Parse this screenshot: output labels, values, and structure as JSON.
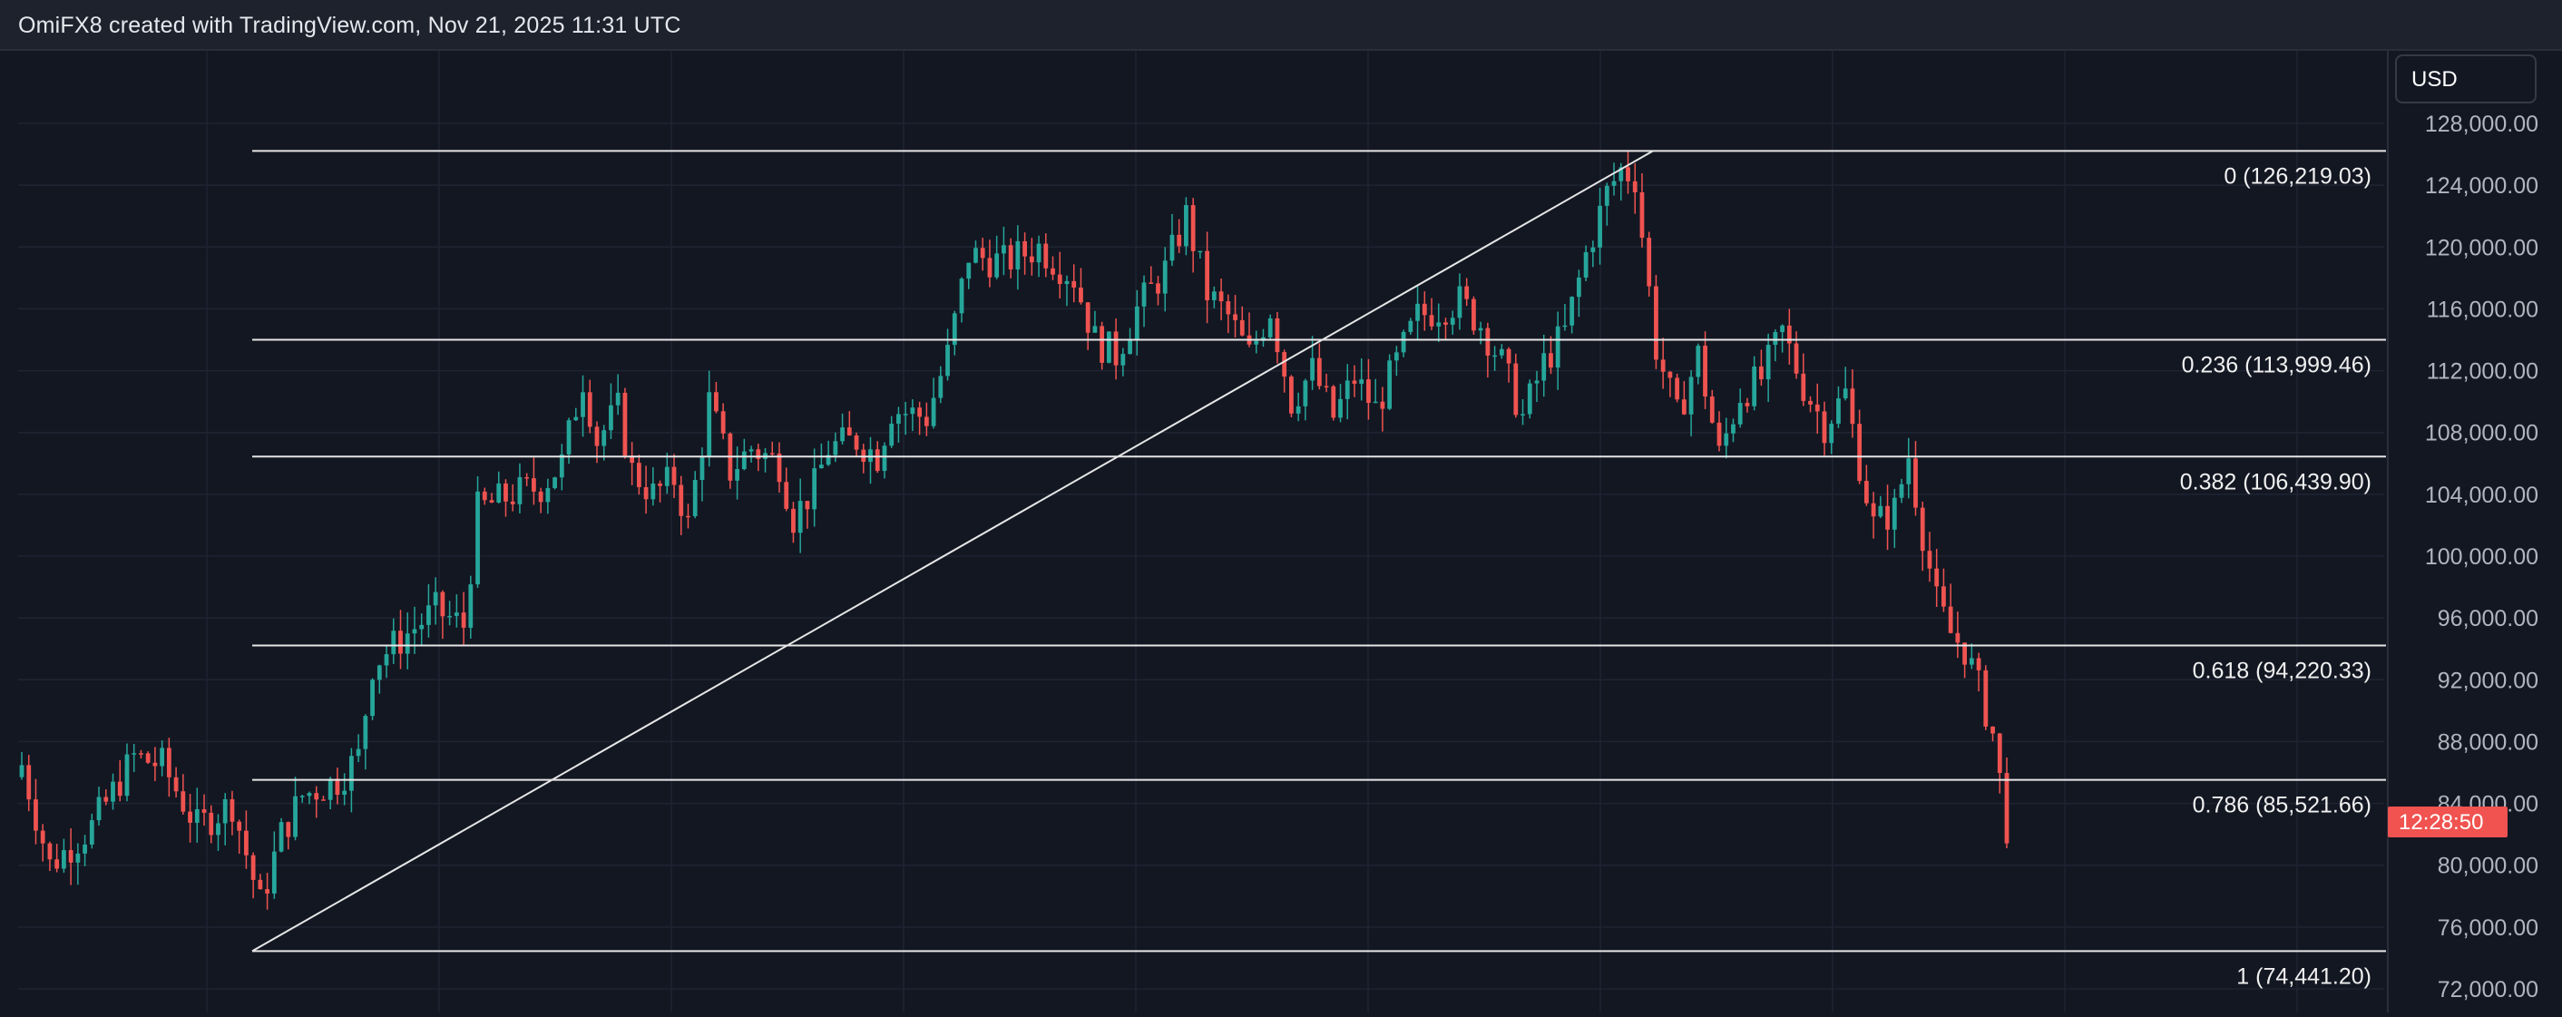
{
  "header": {
    "title": "OmiFX8 created with TradingView.com, Nov 21, 2025 11:31 UTC"
  },
  "price_axis": {
    "currency_label": "USD"
  },
  "countdown": "12:28:50",
  "colors": {
    "up": "#26a69a",
    "down": "#ef5350",
    "background": "#131722",
    "grid": "#1f2433",
    "fib_line": "#e6e6e6"
  },
  "chart_data": {
    "type": "candlestick",
    "title": "",
    "xlabel": "",
    "ylabel": "",
    "ylim": [
      70000,
      130000
    ],
    "yticks": [
      {
        "value": 72000,
        "label": "72,000.00"
      },
      {
        "value": 76000,
        "label": "76,000.00"
      },
      {
        "value": 80000,
        "label": "80,000.00"
      },
      {
        "value": 84000,
        "label": "84,000.00"
      },
      {
        "value": 88000,
        "label": "88,000.00"
      },
      {
        "value": 92000,
        "label": "92,000.00"
      },
      {
        "value": 96000,
        "label": "96,000.00"
      },
      {
        "value": 100000,
        "label": "100,000.00"
      },
      {
        "value": 104000,
        "label": "104,000.00"
      },
      {
        "value": 108000,
        "label": "108,000.00"
      },
      {
        "value": 112000,
        "label": "112,000.00"
      },
      {
        "value": 116000,
        "label": "116,000.00"
      },
      {
        "value": 120000,
        "label": "120,000.00"
      },
      {
        "value": 124000,
        "label": "124,000.00"
      },
      {
        "value": 128000,
        "label": "128,000.00"
      }
    ],
    "grid": true,
    "fib_levels": [
      {
        "ratio": "0",
        "price": 126219.03,
        "label": "0 (126,219.03)"
      },
      {
        "ratio": "0.236",
        "price": 113999.46,
        "label": "0.236 (113,999.46)"
      },
      {
        "ratio": "0.382",
        "price": 106439.9,
        "label": "0.382 (106,439.90)"
      },
      {
        "ratio": "0.618",
        "price": 94220.33,
        "label": "0.618 (94,220.33)"
      },
      {
        "ratio": "0.786",
        "price": 85521.66,
        "label": "0.786 (85,521.66)"
      },
      {
        "ratio": "1",
        "price": 74441.2,
        "label": "1 (74,441.20)"
      }
    ],
    "trend_line": {
      "from_price": 74441.2,
      "to_price": 126219.03
    },
    "close_keypoints": [
      [
        0,
        86500
      ],
      [
        4,
        80000
      ],
      [
        10,
        82500
      ],
      [
        16,
        87000
      ],
      [
        20,
        86500
      ],
      [
        25,
        82500
      ],
      [
        30,
        84000
      ],
      [
        34,
        77500
      ],
      [
        37,
        82000
      ],
      [
        40,
        84500
      ],
      [
        45,
        85500
      ],
      [
        48,
        87000
      ],
      [
        50,
        93000
      ],
      [
        55,
        95000
      ],
      [
        59,
        96500
      ],
      [
        63,
        95500
      ],
      [
        65,
        103000
      ],
      [
        70,
        104000
      ],
      [
        74,
        104500
      ],
      [
        77,
        106000
      ],
      [
        80,
        111500
      ],
      [
        82,
        107500
      ],
      [
        85,
        109500
      ],
      [
        87,
        105500
      ],
      [
        90,
        104000
      ],
      [
        93,
        105000
      ],
      [
        95,
        102000
      ],
      [
        98,
        110000
      ],
      [
        101,
        105500
      ],
      [
        104,
        107000
      ],
      [
        108,
        106000
      ],
      [
        110,
        102500
      ],
      [
        113,
        104500
      ],
      [
        115,
        107000
      ],
      [
        119,
        107500
      ],
      [
        122,
        106500
      ],
      [
        124,
        109500
      ],
      [
        129,
        109000
      ],
      [
        132,
        113000
      ],
      [
        135,
        119500
      ],
      [
        140,
        119000
      ],
      [
        145,
        120000
      ],
      [
        150,
        118000
      ],
      [
        153,
        114000
      ],
      [
        156,
        113000
      ],
      [
        159,
        116000
      ],
      [
        163,
        118500
      ],
      [
        166,
        122000
      ],
      [
        169,
        117000
      ],
      [
        172,
        115500
      ],
      [
        175,
        113000
      ],
      [
        178,
        116000
      ],
      [
        181,
        110000
      ],
      [
        184,
        112000
      ],
      [
        187,
        109000
      ],
      [
        190,
        111500
      ],
      [
        193,
        109500
      ],
      [
        196,
        112500
      ],
      [
        199,
        115500
      ],
      [
        202,
        116000
      ],
      [
        205,
        116500
      ],
      [
        208,
        115000
      ],
      [
        211,
        112500
      ],
      [
        214,
        109000
      ],
      [
        217,
        112500
      ],
      [
        220,
        114500
      ],
      [
        223,
        119500
      ],
      [
        226,
        123500
      ],
      [
        228,
        125000
      ],
      [
        230,
        124500
      ],
      [
        233,
        113500
      ],
      [
        236,
        109000
      ],
      [
        239,
        113000
      ],
      [
        242,
        106500
      ],
      [
        245,
        110500
      ],
      [
        248,
        111500
      ],
      [
        251,
        114500
      ],
      [
        254,
        111000
      ],
      [
        257,
        108500
      ],
      [
        260,
        110500
      ],
      [
        262,
        106000
      ],
      [
        264,
        102000
      ],
      [
        267,
        103000
      ],
      [
        269,
        106500
      ],
      [
        271,
        101500
      ],
      [
        273,
        97000
      ],
      [
        275,
        95000
      ],
      [
        277,
        94000
      ],
      [
        279,
        91500
      ],
      [
        281,
        88500
      ],
      [
        283,
        82500
      ]
    ]
  }
}
